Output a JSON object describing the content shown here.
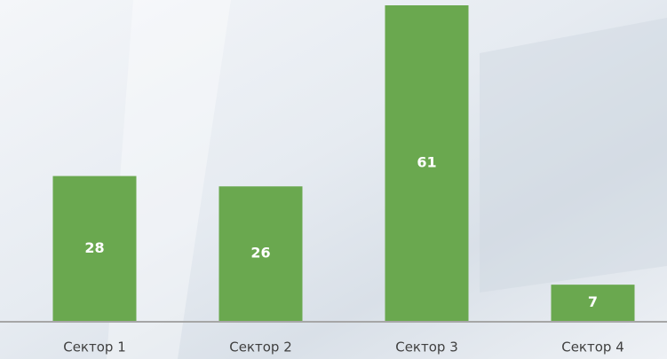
{
  "chart_data": {
    "type": "bar",
    "categories": [
      "Сектор 1",
      "Сектор 2",
      "Сектор 3",
      "Сектор 4"
    ],
    "values": [
      28,
      26,
      61,
      7
    ],
    "color": "#6aa84f"
  }
}
